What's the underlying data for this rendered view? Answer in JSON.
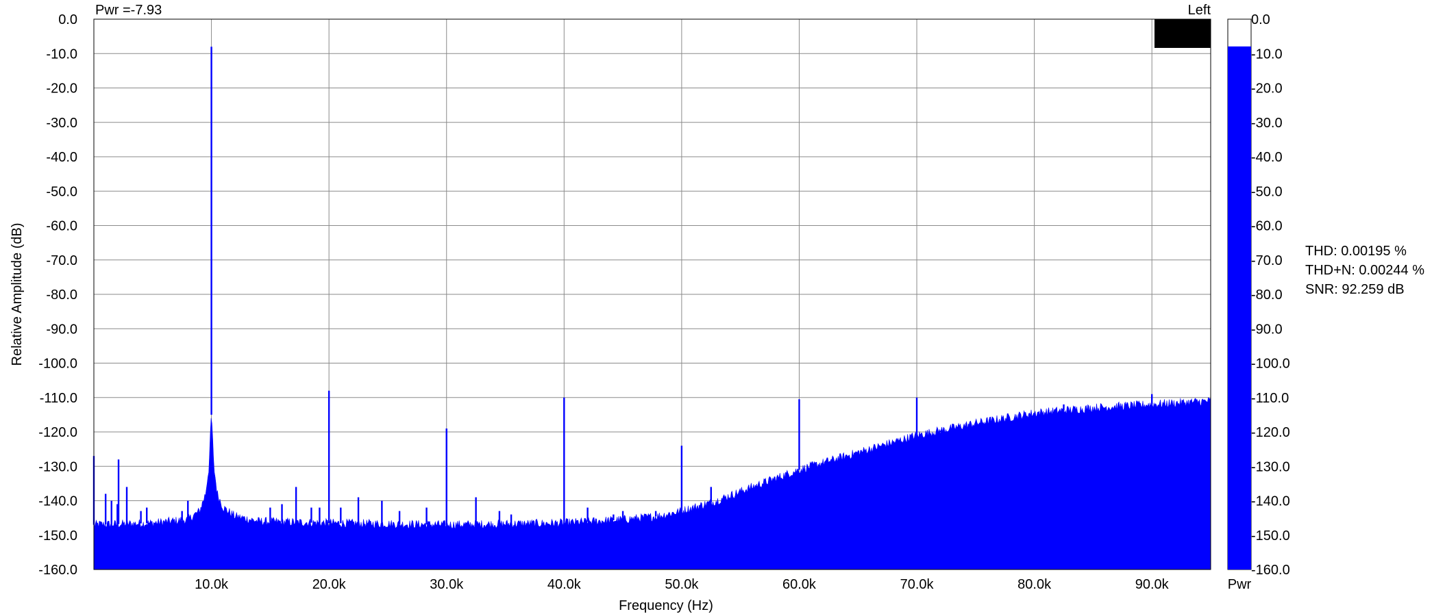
{
  "chart_data": {
    "type": "area",
    "xlabel": "Frequency (Hz)",
    "ylabel": "Relative Amplitude (dB)",
    "xlim": [
      0,
      95000
    ],
    "ylim": [
      -160,
      0
    ],
    "x_ticks": [
      {
        "value": 10000,
        "label": "10.0k"
      },
      {
        "value": 20000,
        "label": "20.0k"
      },
      {
        "value": 30000,
        "label": "30.0k"
      },
      {
        "value": 40000,
        "label": "40.0k"
      },
      {
        "value": 50000,
        "label": "50.0k"
      },
      {
        "value": 60000,
        "label": "60.0k"
      },
      {
        "value": 70000,
        "label": "70.0k"
      },
      {
        "value": 80000,
        "label": "80.0k"
      },
      {
        "value": 90000,
        "label": "90.0k"
      }
    ],
    "y_ticks": [
      {
        "value": 0,
        "label": "0.0"
      },
      {
        "value": -10,
        "label": "-10.0"
      },
      {
        "value": -20,
        "label": "-20.0"
      },
      {
        "value": -30,
        "label": "-30.0"
      },
      {
        "value": -40,
        "label": "-40.0"
      },
      {
        "value": -50,
        "label": "-50.0"
      },
      {
        "value": -60,
        "label": "-60.0"
      },
      {
        "value": -70,
        "label": "-70.0"
      },
      {
        "value": -80,
        "label": "-80.0"
      },
      {
        "value": -90,
        "label": "-90.0"
      },
      {
        "value": -100,
        "label": "-100.0"
      },
      {
        "value": -110,
        "label": "-110.0"
      },
      {
        "value": -120,
        "label": "-120.0"
      },
      {
        "value": -130,
        "label": "-130.0"
      },
      {
        "value": -140,
        "label": "-140.0"
      },
      {
        "value": -150,
        "label": "-150.0"
      },
      {
        "value": -160,
        "label": "-160.0"
      }
    ],
    "grid": true,
    "color": "#0000ff",
    "series": [
      {
        "noise_floor_db": [
          [
            0,
            -147
          ],
          [
            5000,
            -146.5
          ],
          [
            8000,
            -145.5
          ],
          [
            9000,
            -143
          ],
          [
            9500,
            -138
          ],
          [
            9800,
            -130
          ],
          [
            9950,
            -118
          ],
          [
            10000,
            -115
          ],
          [
            10050,
            -118
          ],
          [
            10200,
            -130
          ],
          [
            10500,
            -138
          ],
          [
            11000,
            -142
          ],
          [
            12000,
            -144.5
          ],
          [
            14000,
            -146
          ],
          [
            20000,
            -146.5
          ],
          [
            30000,
            -147
          ],
          [
            40000,
            -146.5
          ],
          [
            45000,
            -145.5
          ],
          [
            48000,
            -144.5
          ],
          [
            50000,
            -143
          ],
          [
            53000,
            -140
          ],
          [
            56000,
            -136
          ],
          [
            60000,
            -131
          ],
          [
            65000,
            -126
          ],
          [
            70000,
            -121
          ],
          [
            75000,
            -117.5
          ],
          [
            80000,
            -114.5
          ],
          [
            85000,
            -113
          ],
          [
            90000,
            -112
          ],
          [
            95000,
            -111
          ]
        ],
        "spurs": [
          [
            0,
            -127
          ],
          [
            500,
            -146
          ],
          [
            1000,
            -138
          ],
          [
            1500,
            -140
          ],
          [
            2000,
            -141
          ],
          [
            2100,
            -128
          ],
          [
            2800,
            -136
          ],
          [
            4000,
            -143
          ],
          [
            4500,
            -142
          ],
          [
            7500,
            -143
          ],
          [
            8000,
            -140
          ],
          [
            10000,
            -8
          ],
          [
            15000,
            -142
          ],
          [
            16000,
            -141
          ],
          [
            17200,
            -136
          ],
          [
            18500,
            -142
          ],
          [
            19200,
            -142
          ],
          [
            20000,
            -108
          ],
          [
            21000,
            -142
          ],
          [
            22500,
            -139
          ],
          [
            24500,
            -140
          ],
          [
            26000,
            -143
          ],
          [
            28300,
            -142
          ],
          [
            30000,
            -119
          ],
          [
            32500,
            -139
          ],
          [
            34500,
            -143
          ],
          [
            35500,
            -144
          ],
          [
            40000,
            -110
          ],
          [
            42000,
            -142
          ],
          [
            44200,
            -144
          ],
          [
            45000,
            -143
          ],
          [
            47800,
            -143
          ],
          [
            50000,
            -124
          ],
          [
            52500,
            -136
          ],
          [
            60000,
            -110.5
          ],
          [
            62000,
            -136
          ],
          [
            70000,
            -110
          ],
          [
            72000,
            -120
          ],
          [
            80000,
            -115
          ],
          [
            82500,
            -112
          ],
          [
            90000,
            -109
          ],
          [
            94000,
            -111
          ]
        ]
      }
    ],
    "top_left_label": "Pwr =-7.93",
    "top_right_label": "Left",
    "power_meter": {
      "label": "Pwr",
      "value_db": -7.93,
      "ylim": [
        -160,
        0
      ],
      "ticks": [
        "0.0",
        "-10.0",
        "-20.0",
        "-30.0",
        "-40.0",
        "-50.0",
        "-60.0",
        "-70.0",
        "-80.0",
        "-90.0",
        "-100.0",
        "-110.0",
        "-120.0",
        "-130.0",
        "-140.0",
        "-150.0",
        "-160.0"
      ]
    }
  },
  "stats": {
    "thd": "THD: 0.00195 %",
    "thdn": "THD+N: 0.00244 %",
    "snr": "SNR: 92.259 dB"
  }
}
